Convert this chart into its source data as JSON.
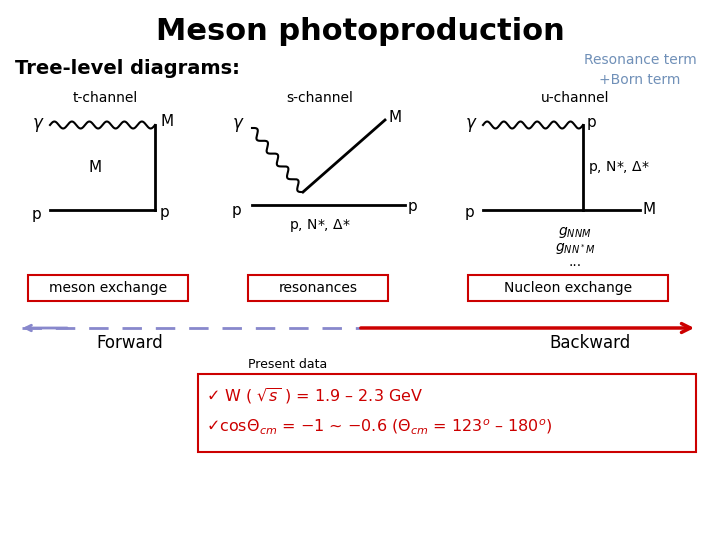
{
  "title": "Meson photoproduction",
  "title_fontsize": 22,
  "title_fontweight": "bold",
  "subtitle_tl": "Tree-level diagrams:",
  "subtitle_tl_fontsize": 14,
  "subtitle_tl_fontweight": "bold",
  "resonance_label": "Resonance term\n+Born term",
  "resonance_color": "#7090b8",
  "bg_color": "#ffffff",
  "black_color": "#000000",
  "red_color": "#cc0000",
  "arrow_purple": "#8888cc",
  "arrow_red": "#cc0000"
}
